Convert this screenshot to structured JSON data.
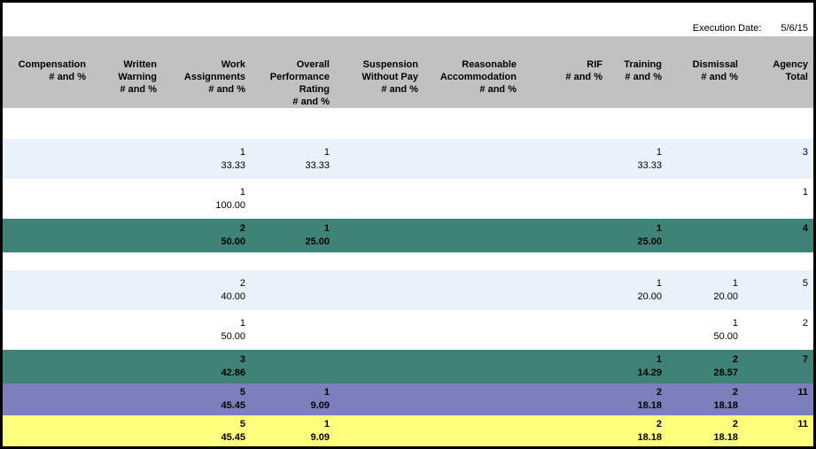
{
  "meta": {
    "execution_date_label": "Execution Date:",
    "execution_date_value": "5/6/15"
  },
  "colors": {
    "frame_border": "#000000",
    "header_bg": "#c1c1c1",
    "row_blue": "#e9f1fb",
    "row_teal": "#3f8278",
    "row_purple": "#7b80bc",
    "row_yellow": "#feff7d",
    "row_white": "#ffffff",
    "text": "#000000"
  },
  "table": {
    "columns": [
      {
        "id": "compensation",
        "label_lines": [
          "Compensation",
          "# and %"
        ]
      },
      {
        "id": "written-warning",
        "label_lines": [
          "Written",
          "Warning",
          "# and %"
        ]
      },
      {
        "id": "work-assignments",
        "label_lines": [
          "Work",
          "Assignments",
          "# and %"
        ]
      },
      {
        "id": "overall-performance-rating",
        "label_lines": [
          "Overall",
          "Performance",
          "Rating",
          "# and %"
        ]
      },
      {
        "id": "suspension-without-pay",
        "label_lines": [
          "Suspension",
          "Without Pay",
          "# and %"
        ]
      },
      {
        "id": "reasonable-accommodation",
        "label_lines": [
          "Reasonable",
          "Accommodation",
          "# and %"
        ]
      },
      {
        "id": "rif",
        "label_lines": [
          "RIF",
          "# and %"
        ]
      },
      {
        "id": "training",
        "label_lines": [
          "Training",
          "# and %"
        ]
      },
      {
        "id": "dismissal",
        "label_lines": [
          "Dismissal",
          "# and %"
        ]
      },
      {
        "id": "agency-total",
        "label_lines": [
          "Agency",
          "Total"
        ]
      }
    ],
    "rows": [
      {
        "type": "spacer",
        "style": "spacer-lg"
      },
      {
        "type": "data",
        "style": "blue",
        "cells": [
          [
            "",
            ""
          ],
          [
            "",
            ""
          ],
          [
            "1",
            "33.33"
          ],
          [
            "1",
            "33.33"
          ],
          [
            "",
            ""
          ],
          [
            "",
            ""
          ],
          [
            "",
            ""
          ],
          [
            "1",
            "33.33"
          ],
          [
            "",
            ""
          ],
          [
            "3",
            ""
          ]
        ]
      },
      {
        "type": "data",
        "style": "white",
        "cells": [
          [
            "",
            ""
          ],
          [
            "",
            ""
          ],
          [
            "1",
            "100.00"
          ],
          [
            "",
            ""
          ],
          [
            "",
            ""
          ],
          [
            "",
            ""
          ],
          [
            "",
            ""
          ],
          [
            "",
            ""
          ],
          [
            "",
            ""
          ],
          [
            "1",
            ""
          ]
        ]
      },
      {
        "type": "data",
        "style": "teal",
        "cells": [
          [
            "",
            ""
          ],
          [
            "",
            ""
          ],
          [
            "2",
            "50.00"
          ],
          [
            "1",
            "25.00"
          ],
          [
            "",
            ""
          ],
          [
            "",
            ""
          ],
          [
            "",
            ""
          ],
          [
            "1",
            "25.00"
          ],
          [
            "",
            ""
          ],
          [
            "4",
            ""
          ]
        ]
      },
      {
        "type": "spacer",
        "style": "spacer-sm"
      },
      {
        "type": "data",
        "style": "blue",
        "cells": [
          [
            "",
            ""
          ],
          [
            "",
            ""
          ],
          [
            "2",
            "40.00"
          ],
          [
            "",
            ""
          ],
          [
            "",
            ""
          ],
          [
            "",
            ""
          ],
          [
            "",
            ""
          ],
          [
            "1",
            "20.00"
          ],
          [
            "1",
            "20.00"
          ],
          [
            "5",
            ""
          ]
        ]
      },
      {
        "type": "data",
        "style": "white",
        "cells": [
          [
            "",
            ""
          ],
          [
            "",
            ""
          ],
          [
            "1",
            "50.00"
          ],
          [
            "",
            ""
          ],
          [
            "",
            ""
          ],
          [
            "",
            ""
          ],
          [
            "",
            ""
          ],
          [
            "",
            ""
          ],
          [
            "1",
            "50.00"
          ],
          [
            "2",
            ""
          ]
        ]
      },
      {
        "type": "data",
        "style": "teal",
        "cells": [
          [
            "",
            ""
          ],
          [
            "",
            ""
          ],
          [
            "3",
            "42.86"
          ],
          [
            "",
            ""
          ],
          [
            "",
            ""
          ],
          [
            "",
            ""
          ],
          [
            "",
            ""
          ],
          [
            "1",
            "14.29"
          ],
          [
            "2",
            "28.57"
          ],
          [
            "7",
            ""
          ]
        ]
      },
      {
        "type": "data",
        "style": "purple",
        "cells": [
          [
            "",
            ""
          ],
          [
            "",
            ""
          ],
          [
            "5",
            "45.45"
          ],
          [
            "1",
            "9.09"
          ],
          [
            "",
            ""
          ],
          [
            "",
            ""
          ],
          [
            "",
            ""
          ],
          [
            "2",
            "18.18"
          ],
          [
            "2",
            "18.18"
          ],
          [
            "11",
            ""
          ]
        ]
      },
      {
        "type": "data",
        "style": "yellow",
        "cells": [
          [
            "",
            ""
          ],
          [
            "",
            ""
          ],
          [
            "5",
            "45.45"
          ],
          [
            "1",
            "9.09"
          ],
          [
            "",
            ""
          ],
          [
            "",
            ""
          ],
          [
            "",
            ""
          ],
          [
            "2",
            "18.18"
          ],
          [
            "2",
            "18.18"
          ],
          [
            "11",
            ""
          ]
        ]
      }
    ]
  }
}
